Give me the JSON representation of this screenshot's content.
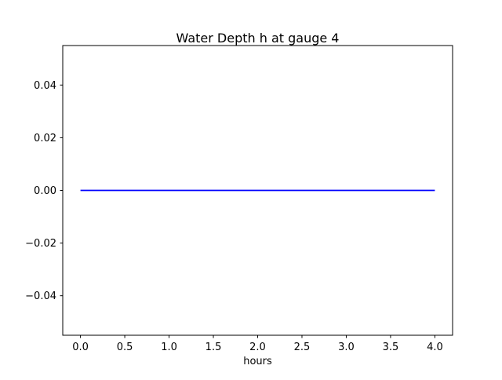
{
  "chart_data": {
    "type": "line",
    "title": "Water Depth h at gauge 4",
    "xlabel": "hours",
    "ylabel": "",
    "xlim": [
      -0.2,
      4.2
    ],
    "ylim": [
      -0.055,
      0.055
    ],
    "x_ticks": [
      0.0,
      0.5,
      1.0,
      1.5,
      2.0,
      2.5,
      3.0,
      3.5,
      4.0
    ],
    "x_tick_labels": [
      "0.0",
      "0.5",
      "1.0",
      "1.5",
      "2.0",
      "2.5",
      "3.0",
      "3.5",
      "4.0"
    ],
    "y_ticks": [
      0.04,
      0.02,
      0.0,
      -0.02,
      -0.04
    ],
    "y_tick_labels": [
      "0.04",
      "0.02",
      "0.00",
      "−0.02",
      "−0.04"
    ],
    "grid": false,
    "legend": "none",
    "frame_color": "#000000",
    "background_color": "#ffffff",
    "series": [
      {
        "name": "water-depth-h",
        "color": "#0000ff",
        "linewidth": 1.8,
        "x": [
          0.0,
          4.0
        ],
        "y": [
          0.0,
          0.0
        ]
      }
    ]
  }
}
